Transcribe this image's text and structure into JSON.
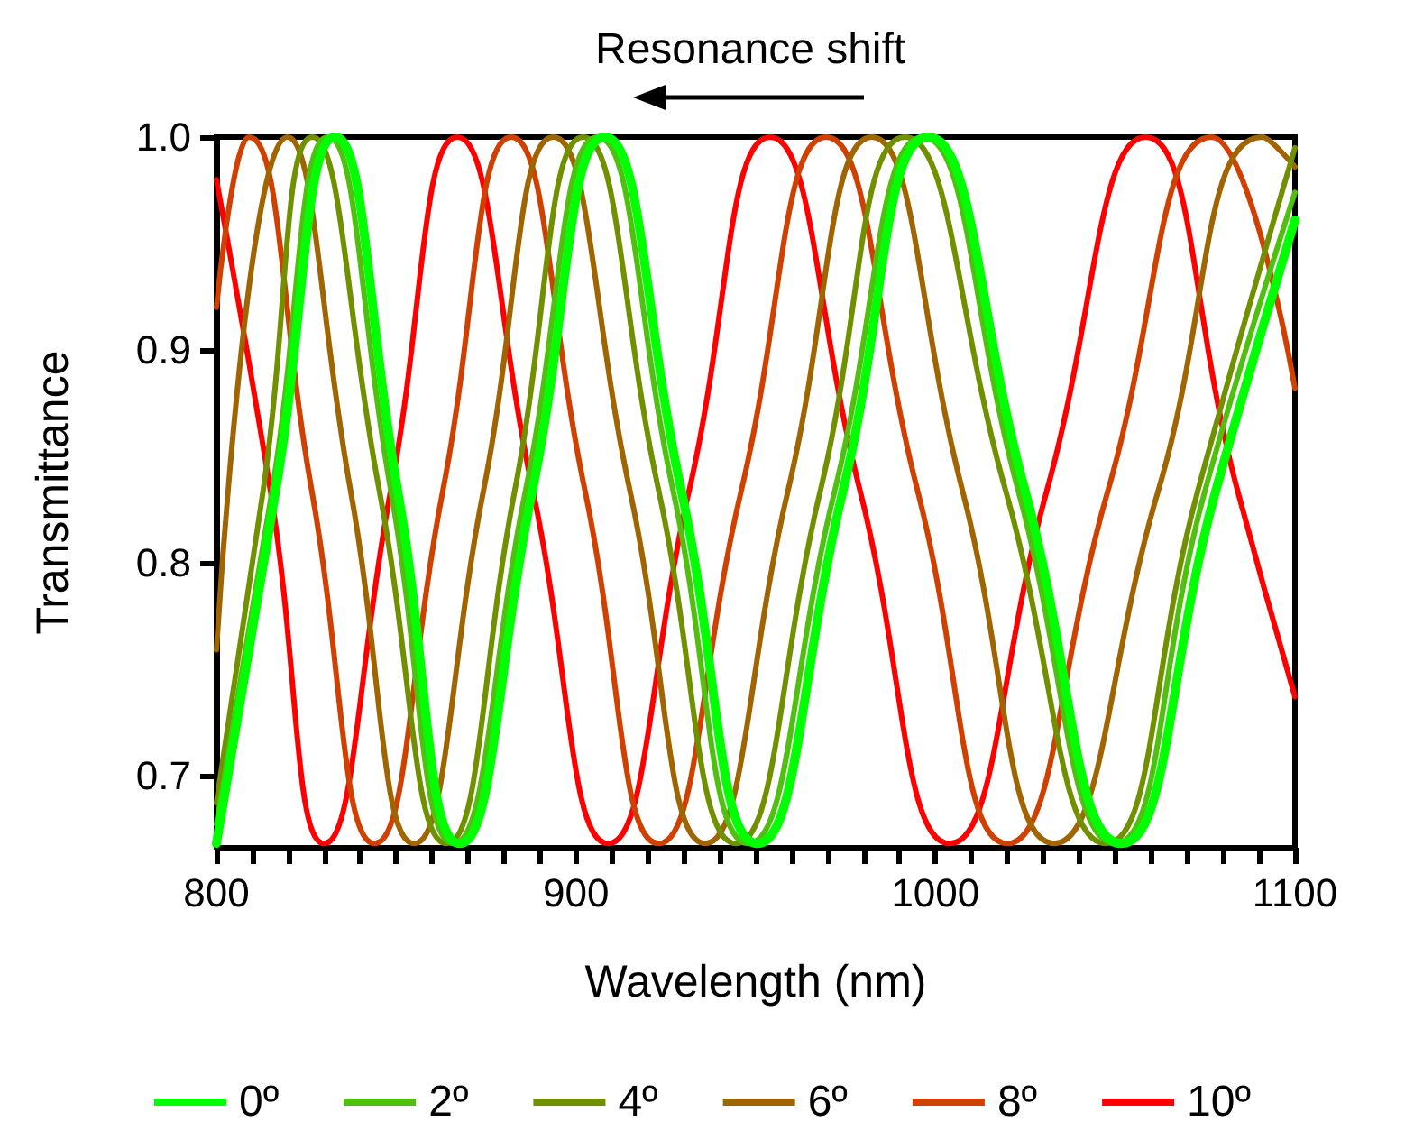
{
  "chart_data": {
    "type": "line",
    "xlabel": "Wavelength (nm)",
    "ylabel": "Transmittance",
    "annotations": [
      "Resonance shift"
    ],
    "xlim": [
      800,
      1100
    ],
    "ylim": [
      0.666,
      1.0
    ],
    "xticks": [
      800,
      {
        "value": 810,
        "label": null
      },
      {
        "value": 820,
        "label": null
      },
      {
        "value": 830,
        "label": null
      },
      {
        "value": 840,
        "label": null
      },
      {
        "value": 850,
        "label": null
      },
      {
        "value": 860,
        "label": null
      },
      {
        "value": 870,
        "label": null
      },
      {
        "value": 880,
        "label": null
      },
      {
        "value": 890,
        "label": null
      },
      900,
      {
        "value": 910,
        "label": null
      },
      {
        "value": 920,
        "label": null
      },
      {
        "value": 930,
        "label": null
      },
      {
        "value": 940,
        "label": null
      },
      {
        "value": 950,
        "label": null
      },
      {
        "value": 960,
        "label": null
      },
      {
        "value": 970,
        "label": null
      },
      {
        "value": 980,
        "label": null
      },
      {
        "value": 990,
        "label": null
      },
      1000,
      {
        "value": 1010,
        "label": null
      },
      {
        "value": 1020,
        "label": null
      },
      {
        "value": 1030,
        "label": null
      },
      {
        "value": 1040,
        "label": null
      },
      {
        "value": 1050,
        "label": null
      },
      {
        "value": 1060,
        "label": null
      },
      {
        "value": 1070,
        "label": null
      },
      {
        "value": 1080,
        "label": null
      },
      {
        "value": 1090,
        "label": null
      },
      1100
    ],
    "yticks": [
      0.7,
      0.8,
      0.9,
      {
        "value": 1.0,
        "label": "1.0"
      }
    ],
    "grid": false,
    "legend": "bottom",
    "marker": "none",
    "line_style": "solid",
    "series": [
      {
        "name": "0º",
        "color": "#00ff00",
        "x": [
          800,
          816.5,
          833,
          850.4,
          867.7,
          887.9,
          908,
          929.3,
          950.5,
          974.3,
          998,
          1024.9,
          1051.7,
          1078,
          1100
        ],
        "values": [
          0.668,
          0.834,
          1,
          0.834,
          0.668,
          0.834,
          1,
          0.834,
          0.668,
          0.834,
          1,
          0.834,
          0.668,
          0.834,
          0.961
        ]
      },
      {
        "name": "2º",
        "color": "#50c010",
        "x": [
          800,
          815.5,
          831,
          848.5,
          866,
          886,
          906,
          927,
          948,
          972,
          996.5,
          1023,
          1050,
          1075,
          1100
        ],
        "values": [
          0.677,
          0.834,
          1,
          0.834,
          0.668,
          0.834,
          1,
          0.834,
          0.668,
          0.834,
          1,
          0.834,
          0.668,
          0.834,
          0.974
        ]
      },
      {
        "name": "4º",
        "color": "#709000",
        "x": [
          800,
          813,
          826.7,
          845.3,
          864,
          883,
          902,
          923,
          944.5,
          968,
          991.5,
          1019.5,
          1047.4,
          1073,
          1100
        ],
        "values": [
          0.687,
          0.834,
          1,
          0.834,
          0.668,
          0.834,
          1,
          0.834,
          0.668,
          0.834,
          1,
          0.834,
          0.668,
          0.834,
          0.995
        ]
      },
      {
        "name": "6º",
        "color": "#a06400",
        "x": [
          800,
          819.7,
          837.3,
          855,
          874.3,
          893.7,
          915,
          936,
          959,
          982.3,
          1007.5,
          1033,
          1062,
          1091,
          1100
        ],
        "values": [
          0.759,
          1,
          0.834,
          0.668,
          0.834,
          1,
          0.834,
          0.668,
          0.834,
          1,
          0.834,
          0.668,
          0.834,
          1,
          0.986
        ]
      },
      {
        "name": "8º",
        "color": "#d04000",
        "x": [
          800,
          809,
          826.5,
          844,
          863,
          882,
          902.5,
          923,
          946,
          969.6,
          995,
          1020,
          1048,
          1076.8,
          1100
        ],
        "values": [
          0.92,
          1,
          0.834,
          0.668,
          0.834,
          1,
          0.834,
          0.668,
          0.834,
          1,
          0.834,
          0.668,
          0.834,
          1,
          0.882
        ]
      },
      {
        "name": "10º",
        "color": "#ff0000",
        "x": [
          800,
          815,
          830,
          848.5,
          867,
          888,
          909,
          931.5,
          954,
          979,
          1004,
          1031,
          1058.5,
          1084,
          1100
        ],
        "values": [
          0.98,
          0.834,
          0.668,
          0.834,
          1,
          0.834,
          0.668,
          0.834,
          1,
          0.834,
          0.668,
          0.834,
          1,
          0.834,
          0.737
        ]
      }
    ]
  }
}
